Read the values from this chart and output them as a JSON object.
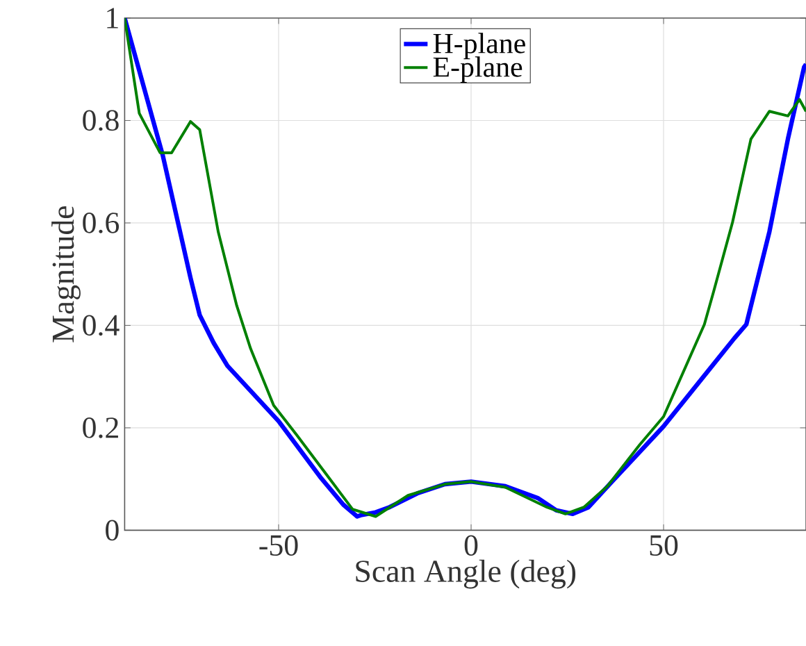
{
  "chart_data": {
    "type": "line",
    "xlabel": "Scan Angle (deg)",
    "ylabel": "Magnitude",
    "xlim": [
      -90,
      87
    ],
    "ylim": [
      0,
      1
    ],
    "xticks": [
      -50,
      0,
      50
    ],
    "yticks": [
      0,
      0.2,
      0.4,
      0.6,
      0.8,
      1
    ],
    "grid": true,
    "legend": "top",
    "series": [
      {
        "name": "H-plane",
        "color": "#0000ff",
        "x": [
          -90,
          -80.1,
          -72.9,
          -70.5,
          -66.9,
          -63.3,
          -50,
          -39.2,
          -33.2,
          -29.6,
          -28.4,
          -24.8,
          -21.2,
          -14,
          -6.8,
          0,
          8.9,
          17.3,
          22.1,
          26.4,
          30.5,
          36.6,
          50,
          68.4,
          71.5,
          77.5,
          82.3,
          86.5,
          87
        ],
        "values": [
          1,
          0.732,
          0.493,
          0.42,
          0.366,
          0.321,
          0.213,
          0.104,
          0.05,
          0.027,
          0.03,
          0.035,
          0.045,
          0.072,
          0.09,
          0.095,
          0.086,
          0.063,
          0.039,
          0.032,
          0.045,
          0.095,
          0.203,
          0.375,
          0.402,
          0.583,
          0.764,
          0.904,
          0.91
        ]
      },
      {
        "name": "E-plane",
        "color": "#008000",
        "x": [
          -90,
          -86.2,
          -80.8,
          -77.8,
          -72.9,
          -70.5,
          -65.7,
          -60.9,
          -57.3,
          -51.3,
          -45.3,
          -38,
          -30.8,
          -24.8,
          -16.4,
          -6.8,
          0,
          8.9,
          19.7,
          24.5,
          29.3,
          35.4,
          43.8,
          50,
          60.6,
          63,
          67.9,
          72.7,
          77.5,
          82.3,
          85.3,
          87
        ],
        "values": [
          1,
          0.814,
          0.737,
          0.737,
          0.798,
          0.782,
          0.583,
          0.439,
          0.355,
          0.244,
          0.186,
          0.113,
          0.041,
          0.027,
          0.068,
          0.09,
          0.095,
          0.084,
          0.045,
          0.032,
          0.045,
          0.086,
          0.167,
          0.222,
          0.402,
          0.466,
          0.601,
          0.764,
          0.818,
          0.809,
          0.841,
          0.818
        ]
      }
    ]
  }
}
